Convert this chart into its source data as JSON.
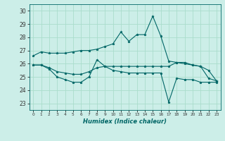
{
  "title": "",
  "xlabel": "Humidex (Indice chaleur)",
  "ylabel": "",
  "background_color": "#cceee8",
  "grid_color": "#aaddcc",
  "line_color": "#006666",
  "xlim": [
    -0.5,
    23.5
  ],
  "ylim": [
    22.5,
    30.5
  ],
  "yticks": [
    23,
    24,
    25,
    26,
    27,
    28,
    29,
    30
  ],
  "xticks": [
    0,
    1,
    2,
    3,
    4,
    5,
    6,
    7,
    8,
    9,
    10,
    11,
    12,
    13,
    14,
    15,
    16,
    17,
    18,
    19,
    20,
    21,
    22,
    23
  ],
  "series": [
    {
      "x": [
        0,
        1,
        2,
        3,
        4,
        5,
        6,
        7,
        8,
        9,
        10,
        11,
        12,
        13,
        14,
        15,
        16,
        17,
        18,
        19,
        20,
        21,
        22,
        23
      ],
      "y": [
        26.6,
        26.9,
        26.8,
        26.8,
        26.8,
        26.9,
        27.0,
        27.0,
        27.1,
        27.3,
        27.5,
        28.4,
        27.7,
        28.2,
        28.2,
        29.6,
        28.1,
        26.2,
        26.1,
        26.1,
        25.9,
        25.8,
        25.5,
        24.7
      ]
    },
    {
      "x": [
        0,
        1,
        2,
        3,
        4,
        5,
        6,
        7,
        8,
        9,
        10,
        11,
        12,
        13,
        14,
        15,
        16,
        17,
        18,
        19,
        20,
        21,
        22,
        23
      ],
      "y": [
        25.9,
        25.9,
        25.6,
        25.0,
        24.8,
        24.6,
        24.6,
        25.0,
        26.3,
        25.8,
        25.5,
        25.4,
        25.3,
        25.3,
        25.3,
        25.3,
        25.3,
        23.1,
        24.9,
        24.8,
        24.8,
        24.6,
        24.6,
        24.6
      ]
    },
    {
      "x": [
        0,
        1,
        2,
        3,
        4,
        5,
        6,
        7,
        8,
        9,
        10,
        11,
        12,
        13,
        14,
        15,
        16,
        17,
        18,
        19,
        20,
        21,
        22,
        23
      ],
      "y": [
        25.9,
        25.9,
        25.7,
        25.4,
        25.3,
        25.2,
        25.2,
        25.4,
        25.7,
        25.8,
        25.8,
        25.8,
        25.8,
        25.8,
        25.8,
        25.8,
        25.8,
        25.8,
        26.1,
        26.0,
        25.9,
        25.8,
        24.9,
        24.7
      ]
    }
  ]
}
